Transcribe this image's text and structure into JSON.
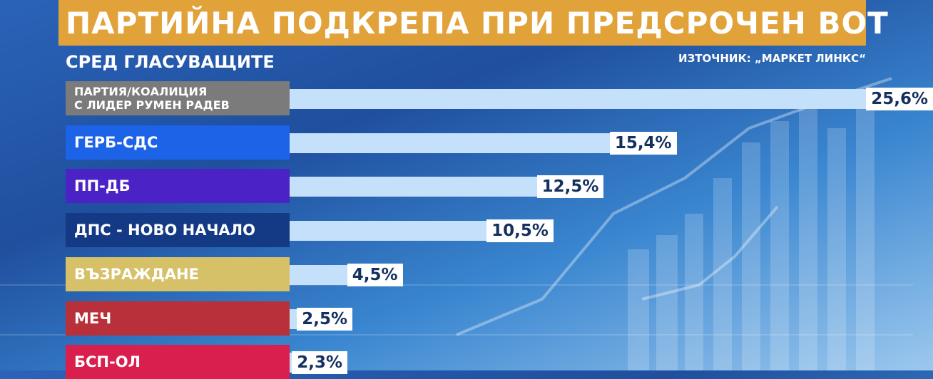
{
  "header": {
    "title": "ПАРТИЙНА ПОДКРЕПА ПРИ ПРЕДСРОЧЕН ВОТ",
    "subtitle": "СРЕД ГЛАСУВАЩИТЕ",
    "source": "ИЗТОЧНИК: „МАРКЕТ ЛИНКС“"
  },
  "colors": {
    "title_bar": "#e1a23a",
    "bar": "#c4e0fb",
    "value_box": "#ffffff",
    "value_text": "#14305e"
  },
  "chart_data": {
    "type": "bar",
    "orientation": "horizontal",
    "title": "ПАРТИЙНА ПОДКРЕПА ПРИ ПРЕДСРОЧЕН ВОТ",
    "subtitle": "СРЕД ГЛАСУВАЩИТЕ",
    "source": "ИЗТОЧНИК: „МАРКЕТ ЛИНКС“",
    "unit": "%",
    "xlim": [
      0,
      25.6
    ],
    "categories": [
      "ПАРТИЯ/КОАЛИЦИЯ\nС ЛИДЕР РУМЕН РАДЕВ",
      "ГЕРБ-СДС",
      "ПП-ДБ",
      "ДПС - НОВО НАЧАЛО",
      "ВЪЗРАЖДАНЕ",
      "МЕЧ",
      "БСП-ОЛ"
    ],
    "values": [
      25.6,
      15.4,
      12.5,
      10.5,
      4.5,
      2.5,
      2.3
    ],
    "value_labels": [
      "25,6%",
      "15,4%",
      "12,5%",
      "10,5%",
      "4,5%",
      "2,5%",
      "2,3%"
    ],
    "category_colors": [
      "#7b7b7b",
      "#1d63e8",
      "#4a22c6",
      "#143a86",
      "#d6c068",
      "#b8303a",
      "#d91f4e"
    ],
    "grid": false,
    "legend": "none"
  }
}
